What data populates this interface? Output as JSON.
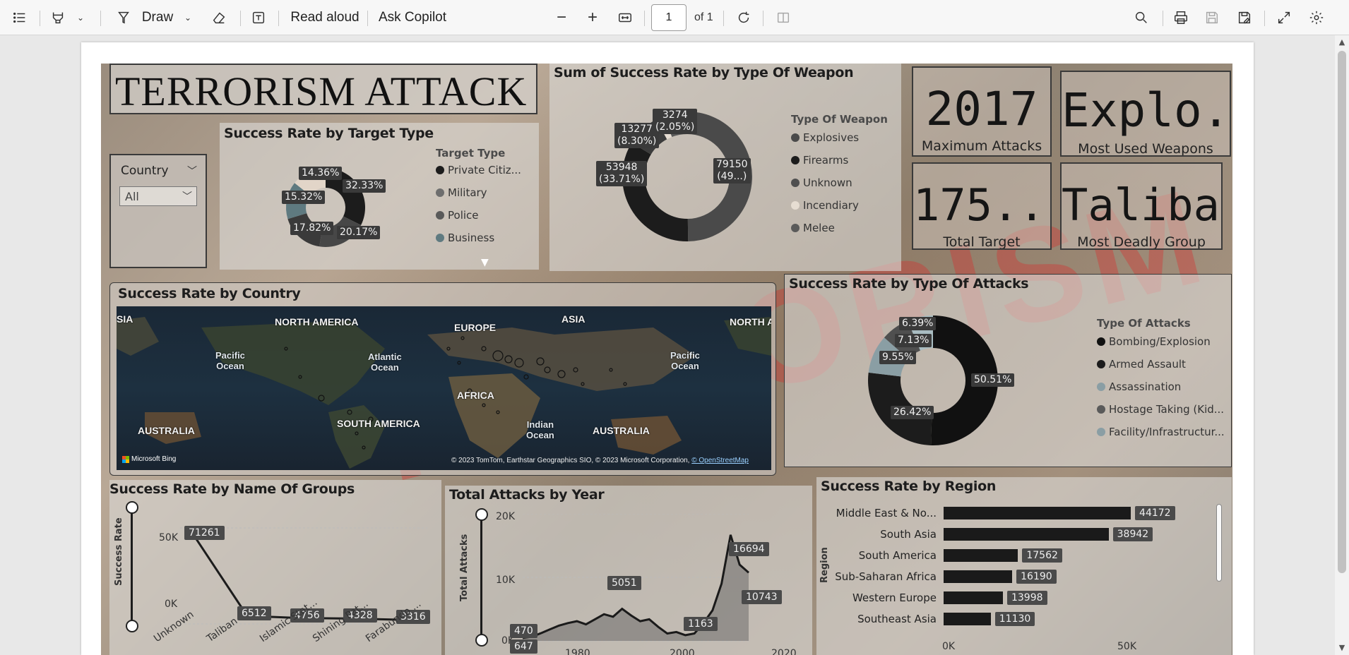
{
  "toolbar": {
    "draw_label": "Draw",
    "read_aloud_label": "Read aloud",
    "ask_copilot_label": "Ask Copilot",
    "page_number": "1",
    "page_total": "of 1"
  },
  "dashboard": {
    "title": "TERRORISM ATTACK",
    "watermark": "TERRORISM",
    "slicer": {
      "label": "Country",
      "value": "All"
    },
    "kpis": [
      {
        "value": "2017",
        "label": "Maximum Attacks"
      },
      {
        "value": "Explo...",
        "label": "Most Used Weapons"
      },
      {
        "value": "175....",
        "label": "Total Target"
      },
      {
        "value": "Taliban",
        "label": "Most Deadly Group"
      }
    ]
  },
  "target_type": {
    "title": "Success Rate by Target Type",
    "legend_title": "Target Type",
    "legend": [
      {
        "name": "Private Citiz...",
        "color": "#1c1c1c"
      },
      {
        "name": "Military",
        "color": "#6e6e6e"
      },
      {
        "name": "Police",
        "color": "#5a5a5a"
      },
      {
        "name": "Business",
        "color": "#5f7a80"
      }
    ],
    "slices": [
      {
        "value": 32.33,
        "label": "32.33%",
        "color": "#1c1c1c"
      },
      {
        "value": 20.17,
        "label": "20.17%",
        "color": "#474747"
      },
      {
        "value": 17.82,
        "label": "17.82%",
        "color": "#3a3a3a"
      },
      {
        "value": 15.32,
        "label": "15.32%",
        "color": "#5f7a80"
      },
      {
        "value": 14.36,
        "label": "14.36%",
        "color": "#e2d5c8"
      }
    ]
  },
  "weapon_type": {
    "title": "Sum of Success Rate by Type Of Weapon",
    "legend_title": "Type Of Weapon",
    "legend": [
      {
        "name": "Explosives",
        "color": "#4a4a4a"
      },
      {
        "name": "Firearms",
        "color": "#1c1c1c"
      },
      {
        "name": "Unknown",
        "color": "#4f4f4f"
      },
      {
        "name": "Incendiary",
        "color": "#e6ddd2"
      },
      {
        "name": "Melee",
        "color": "#5a5a5a"
      }
    ],
    "slices": [
      {
        "value": 79150,
        "label": "79150\n(49...)",
        "color": "#4a4a4a"
      },
      {
        "value": 53948,
        "label": "53948\n(33.71%)",
        "color": "#1c1c1c"
      },
      {
        "value": 13277,
        "label": "13277\n(8.30%)",
        "color": "#3c3c3c"
      },
      {
        "value": 3274,
        "label": "3274\n(2.05%)",
        "color": "#e6ddd2"
      },
      {
        "value": 9350,
        "label": "",
        "color": "#5a5a5a"
      }
    ]
  },
  "country_map": {
    "title": "Success Rate by Country",
    "labels": {
      "asia_left": "SIA",
      "north_america": "NORTH AMERICA",
      "europe": "EUROPE",
      "asia": "ASIA",
      "north_a_right": "NORTH A",
      "pacific_left": "Pacific\nOcean",
      "atlantic": "Atlantic\nOcean",
      "pacific_right": "Pacific\nOcean",
      "africa": "AFRICA",
      "australia_left": "AUSTRALIA",
      "south_america": "SOUTH AMERICA",
      "indian": "Indian\nOcean",
      "australia_right": "AUSTRALIA"
    },
    "bing": "Microsoft Bing",
    "credit": "© 2023 TomTom, Earthstar Geographics SIO, © 2023 Microsoft Corporation, ",
    "credit_link": "© OpenStreetMap"
  },
  "attack_type": {
    "title": "Success Rate by Type Of Attacks",
    "legend_title": "Type Of Attacks",
    "legend": [
      {
        "name": "Bombing/Explosion",
        "color": "#111111"
      },
      {
        "name": "Armed Assault",
        "color": "#1c1c1c"
      },
      {
        "name": "Assassination",
        "color": "#8a9ea4"
      },
      {
        "name": "Hostage Taking (Kid...",
        "color": "#5a5a5a"
      },
      {
        "name": "Facility/Infrastructur...",
        "color": "#8a9ea4"
      }
    ],
    "slices": [
      {
        "value": 50.51,
        "label": "50.51%",
        "color": "#111111"
      },
      {
        "value": 26.42,
        "label": "26.42%",
        "color": "#1c1c1c"
      },
      {
        "value": 9.55,
        "label": "9.55%",
        "color": "#8a9ea4"
      },
      {
        "value": 7.13,
        "label": "7.13%",
        "color": "#4f4f4f"
      },
      {
        "value": 6.39,
        "label": "6.39%",
        "color": "#a9bcc1"
      }
    ]
  },
  "groups": {
    "title": "Success Rate by Name Of Groups",
    "y_axis_label": "Success Rate",
    "y_ticks": [
      "50K",
      "0K"
    ],
    "x_labels": [
      "Unknown",
      "Taliban",
      "Islamic Stat...",
      "Shining Pat...",
      "Farabundo ..."
    ],
    "values": [
      71261,
      6512,
      4756,
      4328,
      3316
    ],
    "value_labels": [
      "71261",
      "6512",
      "4756",
      "4328",
      "3316"
    ]
  },
  "years": {
    "title": "Total Attacks by Year",
    "y_axis_label": "Total Attacks",
    "y_ticks": [
      "20K",
      "10K",
      "0K"
    ],
    "x_ticks": [
      "1980",
      "2000",
      "2020"
    ],
    "value_labels": [
      "647",
      "470",
      "5051",
      "1163",
      "16694",
      "10743"
    ]
  },
  "region": {
    "title": "Success Rate by Region",
    "y_axis_label": "Region",
    "x_ticks": [
      "0K",
      "50K"
    ],
    "rows": [
      {
        "name": "Middle East & No...",
        "value": 44172,
        "label": "44172"
      },
      {
        "name": "South Asia",
        "value": 38942,
        "label": "38942"
      },
      {
        "name": "South America",
        "value": 17562,
        "label": "17562"
      },
      {
        "name": "Sub-Saharan Africa",
        "value": 16190,
        "label": "16190"
      },
      {
        "name": "Western Europe",
        "value": 13998,
        "label": "13998"
      },
      {
        "name": "Southeast Asia",
        "value": 11130,
        "label": "11130"
      }
    ]
  }
}
